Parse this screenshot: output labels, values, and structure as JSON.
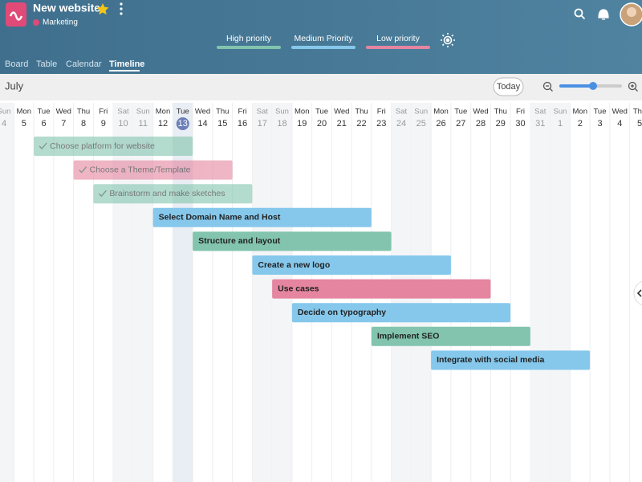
{
  "header": {
    "title": "New website",
    "workspace": "Marketing"
  },
  "legend": [
    {
      "label": "High priority",
      "color": "#82c4ae"
    },
    {
      "label": "Medium Priority",
      "color": "#86c8ec"
    },
    {
      "label": "Low priority",
      "color": "#e585a0"
    }
  ],
  "tabs": [
    {
      "label": "Board",
      "active": false
    },
    {
      "label": "Table",
      "active": false
    },
    {
      "label": "Calendar",
      "active": false
    },
    {
      "label": "Timeline",
      "active": true
    }
  ],
  "toolbar": {
    "month": "July",
    "today_button": "Today"
  },
  "days": [
    {
      "weekday": "Sun",
      "date": 4,
      "weekend": true
    },
    {
      "weekday": "Mon",
      "date": 5,
      "weekend": false
    },
    {
      "weekday": "Tue",
      "date": 6,
      "weekend": false
    },
    {
      "weekday": "Wed",
      "date": 7,
      "weekend": false
    },
    {
      "weekday": "Thu",
      "date": 8,
      "weekend": false
    },
    {
      "weekday": "Fri",
      "date": 9,
      "weekend": false
    },
    {
      "weekday": "Sat",
      "date": 10,
      "weekend": true
    },
    {
      "weekday": "Sun",
      "date": 11,
      "weekend": true
    },
    {
      "weekday": "Mon",
      "date": 12,
      "weekend": false
    },
    {
      "weekday": "Tue",
      "date": 13,
      "weekend": false,
      "today": true
    },
    {
      "weekday": "Wed",
      "date": 14,
      "weekend": false
    },
    {
      "weekday": "Thu",
      "date": 15,
      "weekend": false
    },
    {
      "weekday": "Fri",
      "date": 16,
      "weekend": false
    },
    {
      "weekday": "Sat",
      "date": 17,
      "weekend": true
    },
    {
      "weekday": "Sun",
      "date": 18,
      "weekend": true
    },
    {
      "weekday": "Mon",
      "date": 19,
      "weekend": false
    },
    {
      "weekday": "Tue",
      "date": 20,
      "weekend": false
    },
    {
      "weekday": "Wed",
      "date": 21,
      "weekend": false
    },
    {
      "weekday": "Thu",
      "date": 22,
      "weekend": false
    },
    {
      "weekday": "Fri",
      "date": 23,
      "weekend": false
    },
    {
      "weekday": "Sat",
      "date": 24,
      "weekend": true
    },
    {
      "weekday": "Sun",
      "date": 25,
      "weekend": true
    },
    {
      "weekday": "Mon",
      "date": 26,
      "weekend": false
    },
    {
      "weekday": "Tue",
      "date": 27,
      "weekend": false
    },
    {
      "weekday": "Wed",
      "date": 28,
      "weekend": false
    },
    {
      "weekday": "Thu",
      "date": 29,
      "weekend": false
    },
    {
      "weekday": "Fri",
      "date": 30,
      "weekend": false
    },
    {
      "weekday": "Sat",
      "date": 31,
      "weekend": true
    },
    {
      "weekday": "Sun",
      "date": 1,
      "weekend": true
    },
    {
      "weekday": "Mon",
      "date": 2,
      "weekend": false
    },
    {
      "weekday": "Tue",
      "date": 3,
      "weekend": false
    },
    {
      "weekday": "Wed",
      "date": 4,
      "weekend": false
    },
    {
      "weekday": "Thu",
      "date": 5,
      "weekend": false
    }
  ],
  "tasks": [
    {
      "name": "Choose platform for website",
      "start": 6,
      "end": 13,
      "color": "#82c4ae",
      "done": true
    },
    {
      "name": "Choose a Theme/Template",
      "start": 8,
      "end": 15,
      "color": "#e585a0",
      "done": true
    },
    {
      "name": "Brainstorm and make sketches",
      "start": 9,
      "end": 16,
      "color": "#82c4ae",
      "done": true
    },
    {
      "name": "Select Domain Name and Host",
      "start": 12,
      "end": 22,
      "color": "#86c8ec",
      "done": false
    },
    {
      "name": "Structure and layout",
      "start": 14,
      "end": 23,
      "color": "#82c4ae",
      "done": false
    },
    {
      "name": "Create a new logo",
      "start": 17,
      "end": 26,
      "color": "#86c8ec",
      "done": false
    },
    {
      "name": "Use cases",
      "start": 18,
      "end": 28,
      "color": "#e585a0",
      "done": false
    },
    {
      "name": "Decide on typography",
      "start": 19,
      "end": 29,
      "color": "#86c8ec",
      "done": false
    },
    {
      "name": "Implement SEO",
      "start": 23,
      "end": 30,
      "color": "#82c4ae",
      "done": false
    },
    {
      "name": "Integrate with social media",
      "start": 26,
      "end": 2,
      "color": "#86c8ec",
      "done": false
    }
  ]
}
